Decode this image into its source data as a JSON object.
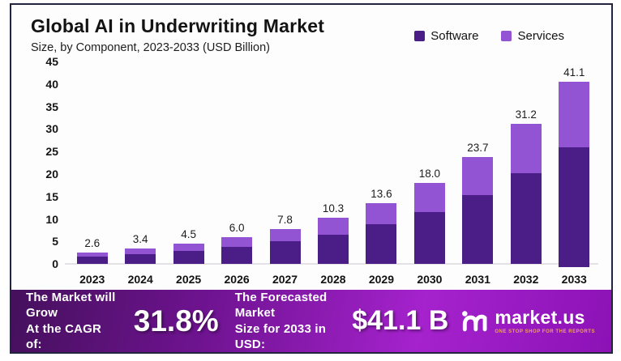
{
  "header": {
    "title": "Global AI in Underwriting Market",
    "subtitle": "Size, by Component, 2023-2033 (USD Billion)"
  },
  "legend": {
    "items": [
      {
        "label": "Software",
        "color": "#4a1d87"
      },
      {
        "label": "Services",
        "color": "#9254d2"
      }
    ]
  },
  "chart_data": {
    "type": "bar",
    "stacked": true,
    "title": "Global AI in Underwriting Market",
    "subtitle": "Size, by Component, 2023-2033 (USD Billion)",
    "xlabel": "",
    "ylabel": "USD Billion",
    "ylim": [
      0,
      45
    ],
    "yticks": [
      0,
      5,
      10,
      15,
      20,
      25,
      30,
      35,
      40,
      45
    ],
    "grid": false,
    "legend_position": "top-right",
    "categories": [
      "2023",
      "2024",
      "2025",
      "2026",
      "2027",
      "2028",
      "2029",
      "2030",
      "2031",
      "2032",
      "2033"
    ],
    "totals": [
      2.6,
      3.4,
      4.5,
      6.0,
      7.8,
      10.3,
      13.6,
      18.0,
      23.7,
      31.2,
      41.1
    ],
    "total_labels": [
      "2.6",
      "3.4",
      "4.5",
      "6.0",
      "7.8",
      "10.3",
      "13.6",
      "18.0",
      "23.7",
      "31.2",
      "41.1"
    ],
    "series": [
      {
        "name": "Software",
        "color": "#4a1d87",
        "values": [
          1.7,
          2.2,
          2.9,
          3.9,
          5.0,
          6.6,
          8.8,
          11.6,
          15.3,
          20.2,
          26.5
        ]
      },
      {
        "name": "Services",
        "color": "#9254d2",
        "values": [
          0.9,
          1.2,
          1.6,
          2.1,
          2.8,
          3.7,
          4.8,
          6.4,
          8.4,
          11.0,
          14.6
        ]
      }
    ]
  },
  "banner": {
    "cagr_label": "The Market will Grow\nAt the CAGR of:",
    "cagr_value": "31.8%",
    "forecast_label": "The Forecasted Market\nSize for 2033 in USD:",
    "forecast_value": "$41.1 B",
    "brand_name": "market.us",
    "brand_tagline": "ONE STOP SHOP FOR THE REPORTS"
  },
  "colors": {
    "software": "#4a1d87",
    "services": "#9254d2",
    "banner_gradient_start": "#45105c",
    "banner_gradient_end": "#8c12b6",
    "tagline_orange": "#eda45c",
    "frame_border": "#23243d"
  }
}
